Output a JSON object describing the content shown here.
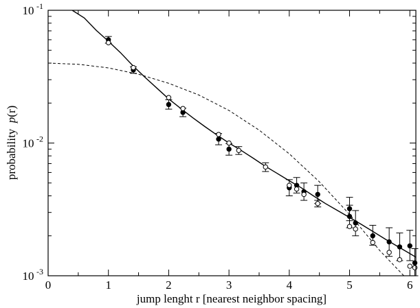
{
  "chart_data": {
    "type": "scatter",
    "title": "",
    "xlabel": "jump lenght  r  [nearest neighbor spacing]",
    "ylabel_parts": [
      "probability  ",
      "p",
      "(r)"
    ],
    "xlim": [
      0,
      6.1
    ],
    "ylim": [
      0.001,
      0.1
    ],
    "yscale": "log",
    "grid": false,
    "legend": "none",
    "x_ticks": [
      0,
      1,
      2,
      3,
      4,
      5,
      6
    ],
    "x_tick_labels": [
      "0",
      "1",
      "2",
      "3",
      "4",
      "5",
      "6"
    ],
    "y_tick_labels": [
      {
        "value": 0.1,
        "base": "10",
        "exp": "-1"
      },
      {
        "value": 0.01,
        "base": "10",
        "exp": "-2"
      },
      {
        "value": 0.001,
        "base": "10",
        "exp": "-3"
      }
    ],
    "series": [
      {
        "marker": "filled-circle",
        "points": [
          {
            "x": 1.0,
            "y": 0.06,
            "lo": 0.0565,
            "hi": 0.0635
          },
          {
            "x": 1.414,
            "y": 0.0355,
            "lo": 0.0335,
            "hi": 0.0375
          },
          {
            "x": 2.0,
            "y": 0.0195,
            "lo": 0.018,
            "hi": 0.0212
          },
          {
            "x": 2.236,
            "y": 0.017,
            "lo": 0.0158,
            "hi": 0.0183
          },
          {
            "x": 2.828,
            "y": 0.0107,
            "lo": 0.0097,
            "hi": 0.0118
          },
          {
            "x": 3.0,
            "y": 0.009,
            "lo": 0.0081,
            "hi": 0.0099
          },
          {
            "x": 4.0,
            "y": 0.0046,
            "lo": 0.004,
            "hi": 0.0053
          },
          {
            "x": 4.123,
            "y": 0.0048,
            "lo": 0.0042,
            "hi": 0.0055
          },
          {
            "x": 4.243,
            "y": 0.0043,
            "lo": 0.0037,
            "hi": 0.005
          },
          {
            "x": 4.472,
            "y": 0.0041,
            "lo": 0.0035,
            "hi": 0.0048
          },
          {
            "x": 5.0,
            "y": 0.0032,
            "lo": 0.0026,
            "hi": 0.0039
          },
          {
            "x": 5.0,
            "y": 0.0028,
            "lo": 0.0023,
            "hi": 0.0034
          },
          {
            "x": 5.099,
            "y": 0.0025,
            "lo": 0.002,
            "hi": 0.0031
          },
          {
            "x": 5.385,
            "y": 0.002,
            "lo": 0.0017,
            "hi": 0.0024
          },
          {
            "x": 5.657,
            "y": 0.0018,
            "lo": 0.0014,
            "hi": 0.0023
          },
          {
            "x": 5.831,
            "y": 0.00165,
            "lo": 0.0013,
            "hi": 0.0021
          },
          {
            "x": 6.0,
            "y": 0.00168,
            "lo": 0.0013,
            "hi": 0.0022
          },
          {
            "x": 6.083,
            "y": 0.00125,
            "lo": 0.001,
            "hi": 0.0016
          }
        ]
      },
      {
        "marker": "open-circle",
        "points": [
          {
            "x": 1.0,
            "y": 0.057
          },
          {
            "x": 1.414,
            "y": 0.037
          },
          {
            "x": 2.0,
            "y": 0.022
          },
          {
            "x": 2.236,
            "y": 0.0182
          },
          {
            "x": 2.828,
            "y": 0.0116
          },
          {
            "x": 3.0,
            "y": 0.01
          },
          {
            "x": 3.162,
            "y": 0.0088,
            "lo": 0.0082,
            "hi": 0.0094
          },
          {
            "x": 3.606,
            "y": 0.0066,
            "lo": 0.0061,
            "hi": 0.0071
          },
          {
            "x": 4.0,
            "y": 0.0048
          },
          {
            "x": 4.123,
            "y": 0.0045
          },
          {
            "x": 4.243,
            "y": 0.0041
          },
          {
            "x": 4.472,
            "y": 0.0035,
            "lo": 0.0033,
            "hi": 0.0037
          },
          {
            "x": 5.0,
            "y": 0.00235
          },
          {
            "x": 5.099,
            "y": 0.00225
          },
          {
            "x": 5.385,
            "y": 0.00178
          },
          {
            "x": 5.657,
            "y": 0.0015
          },
          {
            "x": 5.831,
            "y": 0.00132
          },
          {
            "x": 6.0,
            "y": 0.00118
          },
          {
            "x": 6.083,
            "y": 0.00115
          }
        ]
      }
    ],
    "curves": [
      {
        "style": "solid",
        "points": [
          {
            "x": 0.4,
            "y": 0.1
          },
          {
            "x": 0.6,
            "y": 0.0875
          },
          {
            "x": 0.8,
            "y": 0.0705
          },
          {
            "x": 1.0,
            "y": 0.0585
          },
          {
            "x": 1.2,
            "y": 0.048
          },
          {
            "x": 1.4,
            "y": 0.0385
          },
          {
            "x": 1.6,
            "y": 0.0315
          },
          {
            "x": 1.8,
            "y": 0.026
          },
          {
            "x": 2.0,
            "y": 0.0215
          },
          {
            "x": 2.2,
            "y": 0.0182
          },
          {
            "x": 2.4,
            "y": 0.0155
          },
          {
            "x": 2.6,
            "y": 0.0133
          },
          {
            "x": 2.8,
            "y": 0.0115
          },
          {
            "x": 3.0,
            "y": 0.01
          },
          {
            "x": 3.2,
            "y": 0.0088
          },
          {
            "x": 3.4,
            "y": 0.0077
          },
          {
            "x": 3.6,
            "y": 0.0067
          },
          {
            "x": 3.8,
            "y": 0.0059
          },
          {
            "x": 4.0,
            "y": 0.0052
          },
          {
            "x": 4.2,
            "y": 0.0046
          },
          {
            "x": 4.4,
            "y": 0.004
          },
          {
            "x": 4.6,
            "y": 0.0035
          },
          {
            "x": 4.8,
            "y": 0.0031
          },
          {
            "x": 5.0,
            "y": 0.00275
          },
          {
            "x": 5.2,
            "y": 0.00243
          },
          {
            "x": 5.4,
            "y": 0.00214
          },
          {
            "x": 5.6,
            "y": 0.00188
          },
          {
            "x": 5.8,
            "y": 0.00166
          },
          {
            "x": 6.0,
            "y": 0.00147
          },
          {
            "x": 6.1,
            "y": 0.00138
          }
        ]
      },
      {
        "style": "dashed",
        "points": [
          {
            "x": 0.0,
            "y": 0.04
          },
          {
            "x": 0.5,
            "y": 0.0392
          },
          {
            "x": 1.0,
            "y": 0.0368
          },
          {
            "x": 1.5,
            "y": 0.033
          },
          {
            "x": 2.0,
            "y": 0.0282
          },
          {
            "x": 2.5,
            "y": 0.023
          },
          {
            "x": 3.0,
            "y": 0.0176
          },
          {
            "x": 3.5,
            "y": 0.0125
          },
          {
            "x": 4.0,
            "y": 0.0083
          },
          {
            "x": 4.5,
            "y": 0.0051
          },
          {
            "x": 5.0,
            "y": 0.0029
          },
          {
            "x": 5.5,
            "y": 0.00155
          },
          {
            "x": 5.9,
            "y": 0.001
          }
        ]
      }
    ]
  }
}
